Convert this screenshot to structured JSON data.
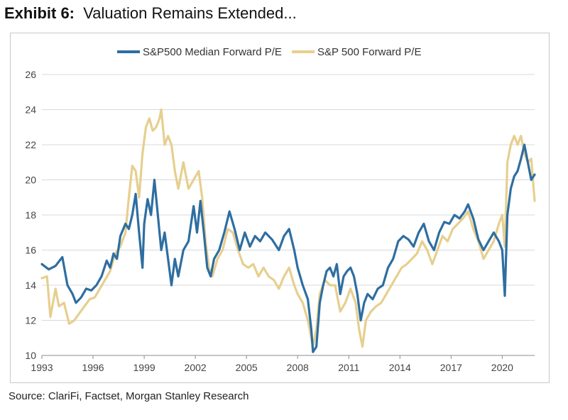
{
  "header": {
    "exhibit": "Exhibit 6:",
    "title": "Valuation Remains Extended..."
  },
  "source": "Source: ClariFi, Factset, Morgan Stanley Research",
  "colors": {
    "median": "#2e6ea1",
    "sp500": "#e6cf8f",
    "grid": "#d9d9d9",
    "axis": "#8c8c8c"
  },
  "chart_data": {
    "type": "line",
    "title": "Valuation Remains Extended...",
    "xlabel": "",
    "ylabel": "",
    "xlim": [
      1993,
      2021.9
    ],
    "ylim": [
      10,
      26
    ],
    "grid": "horizontal",
    "legend": "top-center",
    "x_ticks": [
      "1993",
      "1996",
      "1999",
      "2002",
      "2005",
      "2008",
      "2011",
      "2014",
      "2017",
      "2020"
    ],
    "y_ticks": [
      "10",
      "12",
      "14",
      "16",
      "18",
      "20",
      "22",
      "24",
      "26"
    ],
    "series": [
      {
        "name": "S&P500 Median Forward P/E",
        "points": [
          [
            1993.0,
            15.2
          ],
          [
            1993.4,
            14.9
          ],
          [
            1993.8,
            15.1
          ],
          [
            1994.2,
            15.6
          ],
          [
            1994.5,
            14.0
          ],
          [
            1994.8,
            13.5
          ],
          [
            1995.0,
            13.0
          ],
          [
            1995.3,
            13.3
          ],
          [
            1995.6,
            13.8
          ],
          [
            1995.9,
            13.7
          ],
          [
            1996.2,
            14.0
          ],
          [
            1996.5,
            14.5
          ],
          [
            1996.8,
            15.4
          ],
          [
            1997.0,
            15.0
          ],
          [
            1997.2,
            15.8
          ],
          [
            1997.4,
            15.5
          ],
          [
            1997.6,
            16.8
          ],
          [
            1997.9,
            17.5
          ],
          [
            1998.1,
            17.2
          ],
          [
            1998.3,
            18.0
          ],
          [
            1998.5,
            19.2
          ],
          [
            1998.7,
            17.0
          ],
          [
            1998.9,
            15.0
          ],
          [
            1999.0,
            17.5
          ],
          [
            1999.2,
            18.9
          ],
          [
            1999.4,
            18.0
          ],
          [
            1999.6,
            20.0
          ],
          [
            1999.8,
            18.0
          ],
          [
            2000.0,
            16.0
          ],
          [
            2000.2,
            17.0
          ],
          [
            2000.4,
            15.5
          ],
          [
            2000.6,
            14.0
          ],
          [
            2000.8,
            15.5
          ],
          [
            2001.0,
            14.5
          ],
          [
            2001.3,
            16.0
          ],
          [
            2001.6,
            16.5
          ],
          [
            2001.9,
            18.5
          ],
          [
            2002.1,
            17.0
          ],
          [
            2002.3,
            18.8
          ],
          [
            2002.5,
            17.0
          ],
          [
            2002.7,
            15.0
          ],
          [
            2002.9,
            14.5
          ],
          [
            2003.1,
            15.5
          ],
          [
            2003.4,
            16.0
          ],
          [
            2003.7,
            17.0
          ],
          [
            2004.0,
            18.2
          ],
          [
            2004.3,
            17.2
          ],
          [
            2004.6,
            16.0
          ],
          [
            2004.9,
            17.0
          ],
          [
            2005.2,
            16.2
          ],
          [
            2005.5,
            16.8
          ],
          [
            2005.8,
            16.5
          ],
          [
            2006.1,
            17.0
          ],
          [
            2006.5,
            16.6
          ],
          [
            2006.9,
            16.0
          ],
          [
            2007.2,
            16.8
          ],
          [
            2007.5,
            17.2
          ],
          [
            2007.8,
            16.0
          ],
          [
            2008.0,
            15.0
          ],
          [
            2008.3,
            14.0
          ],
          [
            2008.6,
            13.2
          ],
          [
            2008.8,
            11.5
          ],
          [
            2008.9,
            10.2
          ],
          [
            2009.1,
            10.5
          ],
          [
            2009.3,
            13.0
          ],
          [
            2009.5,
            14.0
          ],
          [
            2009.7,
            14.8
          ],
          [
            2009.9,
            15.0
          ],
          [
            2010.1,
            14.5
          ],
          [
            2010.3,
            15.2
          ],
          [
            2010.5,
            13.5
          ],
          [
            2010.7,
            14.5
          ],
          [
            2010.9,
            14.8
          ],
          [
            2011.1,
            15.0
          ],
          [
            2011.3,
            14.5
          ],
          [
            2011.5,
            13.5
          ],
          [
            2011.7,
            12.0
          ],
          [
            2011.9,
            13.0
          ],
          [
            2012.1,
            13.5
          ],
          [
            2012.4,
            13.2
          ],
          [
            2012.7,
            13.8
          ],
          [
            2013.0,
            14.0
          ],
          [
            2013.3,
            15.0
          ],
          [
            2013.6,
            15.5
          ],
          [
            2013.9,
            16.5
          ],
          [
            2014.2,
            16.8
          ],
          [
            2014.5,
            16.6
          ],
          [
            2014.8,
            16.2
          ],
          [
            2015.1,
            17.0
          ],
          [
            2015.4,
            17.5
          ],
          [
            2015.7,
            16.5
          ],
          [
            2016.0,
            16.0
          ],
          [
            2016.3,
            17.0
          ],
          [
            2016.6,
            17.6
          ],
          [
            2016.9,
            17.5
          ],
          [
            2017.2,
            18.0
          ],
          [
            2017.5,
            17.8
          ],
          [
            2017.8,
            18.2
          ],
          [
            2018.0,
            18.6
          ],
          [
            2018.3,
            17.8
          ],
          [
            2018.6,
            16.6
          ],
          [
            2018.9,
            16.0
          ],
          [
            2019.2,
            16.5
          ],
          [
            2019.5,
            17.0
          ],
          [
            2019.8,
            16.5
          ],
          [
            2020.0,
            16.0
          ],
          [
            2020.15,
            13.4
          ],
          [
            2020.3,
            18.0
          ],
          [
            2020.5,
            19.5
          ],
          [
            2020.7,
            20.2
          ],
          [
            2020.9,
            20.5
          ],
          [
            2021.1,
            21.2
          ],
          [
            2021.3,
            22.0
          ],
          [
            2021.5,
            21.0
          ],
          [
            2021.7,
            20.0
          ],
          [
            2021.9,
            20.3
          ]
        ]
      },
      {
        "name": "S&P 500 Forward P/E",
        "points": [
          [
            1993.0,
            14.4
          ],
          [
            1993.3,
            14.5
          ],
          [
            1993.5,
            12.2
          ],
          [
            1993.8,
            13.8
          ],
          [
            1994.0,
            12.8
          ],
          [
            1994.3,
            13.0
          ],
          [
            1994.6,
            11.8
          ],
          [
            1994.9,
            12.0
          ],
          [
            1995.2,
            12.4
          ],
          [
            1995.5,
            12.8
          ],
          [
            1995.8,
            13.2
          ],
          [
            1996.1,
            13.3
          ],
          [
            1996.4,
            13.8
          ],
          [
            1996.7,
            14.3
          ],
          [
            1997.0,
            14.8
          ],
          [
            1997.3,
            15.8
          ],
          [
            1997.6,
            16.2
          ],
          [
            1997.9,
            17.0
          ],
          [
            1998.1,
            19.0
          ],
          [
            1998.3,
            20.8
          ],
          [
            1998.5,
            20.5
          ],
          [
            1998.7,
            19.0
          ],
          [
            1998.9,
            21.5
          ],
          [
            1999.1,
            23.0
          ],
          [
            1999.3,
            23.5
          ],
          [
            1999.5,
            22.8
          ],
          [
            1999.7,
            23.0
          ],
          [
            1999.9,
            23.5
          ],
          [
            2000.0,
            24.0
          ],
          [
            2000.2,
            22.0
          ],
          [
            2000.4,
            22.5
          ],
          [
            2000.6,
            22.0
          ],
          [
            2000.8,
            20.5
          ],
          [
            2001.0,
            19.5
          ],
          [
            2001.3,
            21.0
          ],
          [
            2001.6,
            19.5
          ],
          [
            2001.9,
            20.0
          ],
          [
            2002.2,
            20.5
          ],
          [
            2002.4,
            19.0
          ],
          [
            2002.6,
            16.5
          ],
          [
            2002.8,
            15.0
          ],
          [
            2003.0,
            14.5
          ],
          [
            2003.3,
            15.5
          ],
          [
            2003.6,
            16.0
          ],
          [
            2003.9,
            17.2
          ],
          [
            2004.2,
            17.0
          ],
          [
            2004.5,
            16.0
          ],
          [
            2004.8,
            15.2
          ],
          [
            2005.1,
            15.0
          ],
          [
            2005.4,
            15.2
          ],
          [
            2005.7,
            14.5
          ],
          [
            2006.0,
            15.0
          ],
          [
            2006.3,
            14.5
          ],
          [
            2006.6,
            14.3
          ],
          [
            2006.9,
            13.8
          ],
          [
            2007.2,
            14.5
          ],
          [
            2007.5,
            15.0
          ],
          [
            2007.8,
            14.0
          ],
          [
            2008.0,
            13.5
          ],
          [
            2008.3,
            13.0
          ],
          [
            2008.6,
            12.0
          ],
          [
            2008.9,
            10.5
          ],
          [
            2009.1,
            11.5
          ],
          [
            2009.3,
            13.5
          ],
          [
            2009.6,
            14.3
          ],
          [
            2009.9,
            14.0
          ],
          [
            2010.2,
            14.0
          ],
          [
            2010.5,
            12.5
          ],
          [
            2010.8,
            13.0
          ],
          [
            2011.1,
            13.8
          ],
          [
            2011.4,
            13.0
          ],
          [
            2011.6,
            11.5
          ],
          [
            2011.8,
            10.5
          ],
          [
            2012.0,
            12.0
          ],
          [
            2012.3,
            12.5
          ],
          [
            2012.6,
            12.8
          ],
          [
            2012.9,
            13.0
          ],
          [
            2013.2,
            13.5
          ],
          [
            2013.5,
            14.0
          ],
          [
            2013.8,
            14.5
          ],
          [
            2014.1,
            15.0
          ],
          [
            2014.4,
            15.2
          ],
          [
            2014.7,
            15.5
          ],
          [
            2015.0,
            15.8
          ],
          [
            2015.3,
            16.5
          ],
          [
            2015.6,
            16.0
          ],
          [
            2015.9,
            15.2
          ],
          [
            2016.2,
            16.0
          ],
          [
            2016.5,
            16.8
          ],
          [
            2016.8,
            16.5
          ],
          [
            2017.1,
            17.2
          ],
          [
            2017.4,
            17.5
          ],
          [
            2017.7,
            17.8
          ],
          [
            2018.0,
            18.2
          ],
          [
            2018.3,
            17.2
          ],
          [
            2018.6,
            16.5
          ],
          [
            2018.9,
            15.5
          ],
          [
            2019.2,
            16.0
          ],
          [
            2019.5,
            16.5
          ],
          [
            2019.8,
            17.5
          ],
          [
            2020.0,
            18.0
          ],
          [
            2020.15,
            16.2
          ],
          [
            2020.3,
            21.0
          ],
          [
            2020.5,
            22.0
          ],
          [
            2020.7,
            22.5
          ],
          [
            2020.9,
            22.0
          ],
          [
            2021.1,
            22.5
          ],
          [
            2021.3,
            21.5
          ],
          [
            2021.5,
            21.0
          ],
          [
            2021.7,
            21.2
          ],
          [
            2021.9,
            18.8
          ]
        ]
      }
    ]
  }
}
